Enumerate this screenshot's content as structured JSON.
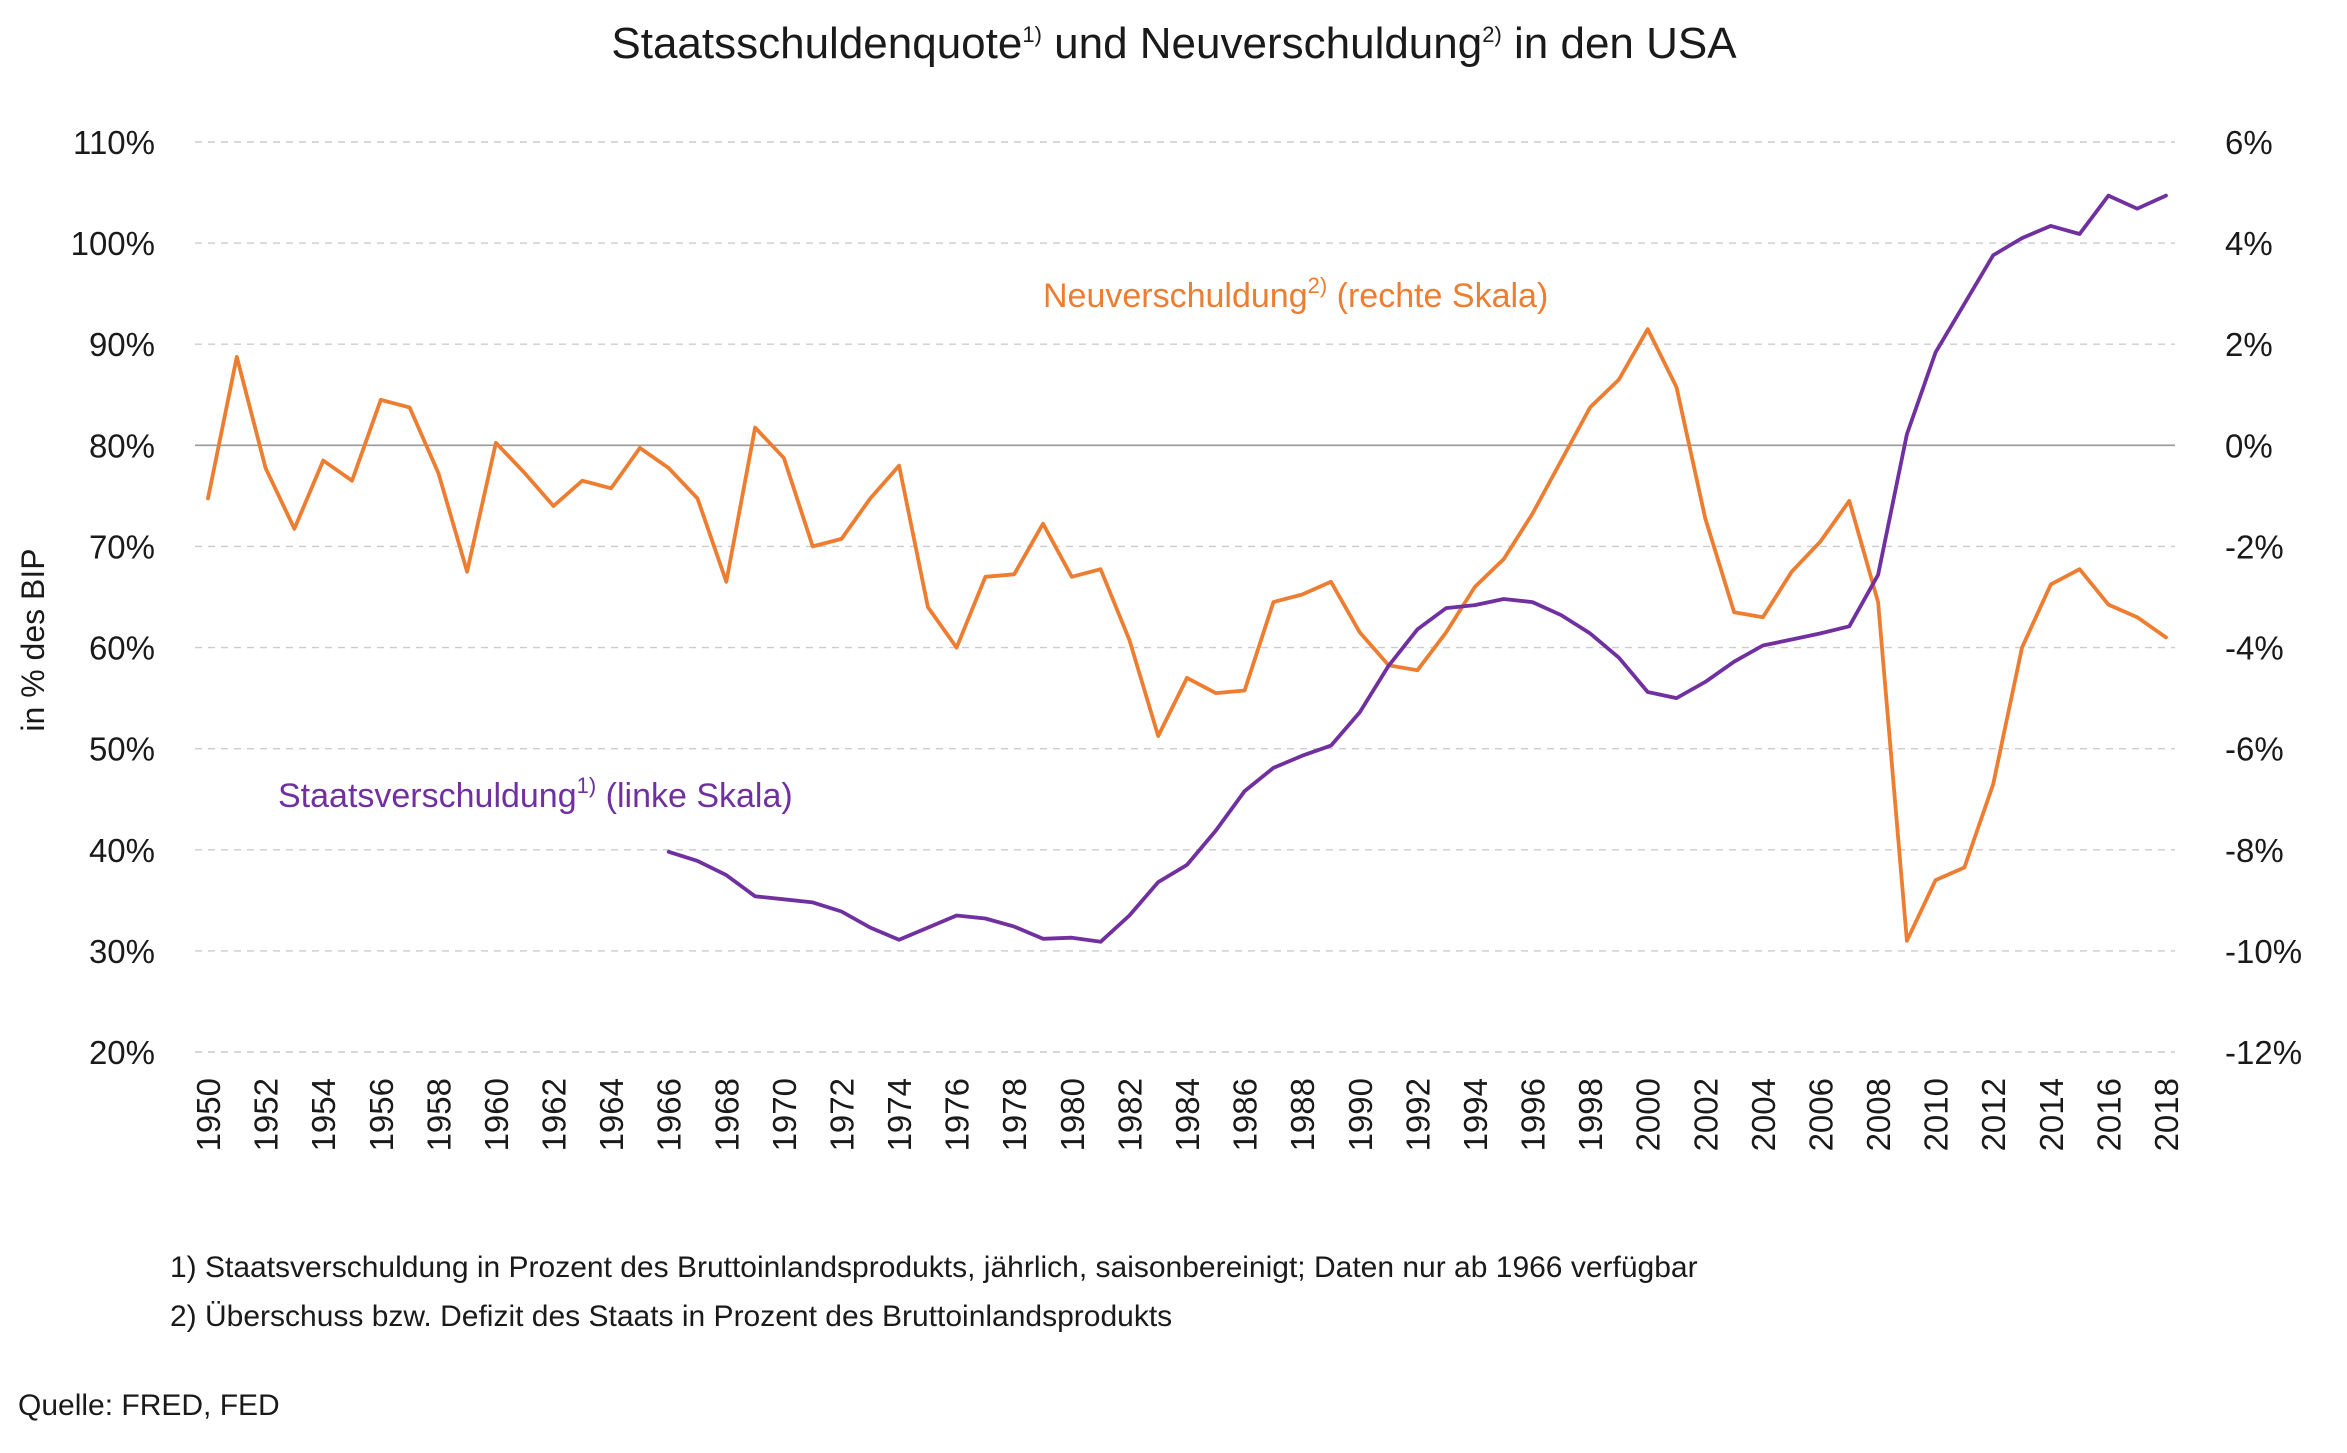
{
  "title": {
    "part1": "Staatsschuldenquote",
    "sup1": "1)",
    "part2": " und Neuverschuldung",
    "sup2": "2)",
    "part3": " in den USA"
  },
  "y_left_label": "in % des BIP",
  "labels": {
    "neu_text": "Neuverschuldung",
    "neu_sup": "2)",
    "neu_scale": " (rechte Skala)",
    "staat_text": "Staatsverschuldung",
    "staat_sup": "1)",
    "staat_scale": " (linke Skala)"
  },
  "footnotes": {
    "note1": "1) Staatsverschuldung in Prozent des Bruttoinlandsprodukts, jährlich, saisonbereinigt; Daten nur ab 1966 verfügbar",
    "note2": "2) Überschuss bzw. Defizit des Staats in Prozent des Bruttoinlandsprodukts",
    "source": "Quelle: FRED, FED"
  },
  "colors": {
    "neuverschuldung": "#ED7D31",
    "staatsverschuldung": "#7030A0",
    "grid": "#cccccc",
    "zero_line": "#999999"
  },
  "chart_data": {
    "type": "line",
    "title": "Staatsschuldenquote1) und Neuverschuldung2) in den USA",
    "xlabel": "",
    "ylabel": "in % des BIP",
    "x": [
      1950,
      1951,
      1952,
      1953,
      1954,
      1955,
      1956,
      1957,
      1958,
      1959,
      1960,
      1961,
      1962,
      1963,
      1964,
      1965,
      1966,
      1967,
      1968,
      1969,
      1970,
      1971,
      1972,
      1973,
      1974,
      1975,
      1976,
      1977,
      1978,
      1979,
      1980,
      1981,
      1982,
      1983,
      1984,
      1985,
      1986,
      1987,
      1988,
      1989,
      1990,
      1991,
      1992,
      1993,
      1994,
      1995,
      1996,
      1997,
      1998,
      1999,
      2000,
      2001,
      2002,
      2003,
      2004,
      2005,
      2006,
      2007,
      2008,
      2009,
      2010,
      2011,
      2012,
      2013,
      2014,
      2015,
      2016,
      2017,
      2018
    ],
    "x_ticks": [
      "1950",
      "1952",
      "1954",
      "1956",
      "1958",
      "1960",
      "1962",
      "1964",
      "1966",
      "1968",
      "1970",
      "1972",
      "1974",
      "1976",
      "1978",
      "1980",
      "1982",
      "1984",
      "1986",
      "1988",
      "1990",
      "1992",
      "1994",
      "1996",
      "1998",
      "2000",
      "2002",
      "2004",
      "2006",
      "2008",
      "2010",
      "2012",
      "2014",
      "2016",
      "2018"
    ],
    "y_left": {
      "lim": [
        20,
        110
      ],
      "ticks": [
        "20%",
        "30%",
        "40%",
        "50%",
        "60%",
        "70%",
        "80%",
        "90%",
        "100%",
        "110%"
      ]
    },
    "y_right": {
      "lim": [
        -12,
        6
      ],
      "ticks": [
        "-12%",
        "-10%",
        "-8%",
        "-6%",
        "-4%",
        "-2%",
        "0%",
        "2%",
        "4%",
        "6%"
      ]
    },
    "grid": true,
    "series": [
      {
        "name": "Neuverschuldung2) (rechte Skala)",
        "axis": "right",
        "values": [
          -1.05,
          1.75,
          -0.45,
          -1.65,
          -0.3,
          -0.7,
          0.9,
          0.75,
          -0.55,
          -2.5,
          0.05,
          -0.55,
          -1.2,
          -0.7,
          -0.85,
          -0.05,
          -0.45,
          -1.05,
          -2.7,
          0.35,
          -0.25,
          -2.0,
          -1.85,
          -1.05,
          -0.4,
          -3.2,
          -4.0,
          -2.6,
          -2.55,
          -1.55,
          -2.6,
          -2.45,
          -3.85,
          -5.75,
          -4.6,
          -4.9,
          -4.85,
          -3.1,
          -2.95,
          -2.7,
          -3.7,
          -4.35,
          -4.45,
          -3.7,
          -2.8,
          -2.25,
          -1.35,
          -0.3,
          0.75,
          1.3,
          2.3,
          1.15,
          -1.45,
          -3.3,
          -3.4,
          -2.5,
          -1.9,
          -1.1,
          -3.1,
          -9.8,
          -8.6,
          -8.35,
          -6.7,
          -4.0,
          -2.75,
          -2.45,
          -3.15,
          -3.4,
          -3.8
        ]
      },
      {
        "name": "Staatsverschuldung1) (linke Skala)",
        "axis": "left",
        "values": [
          null,
          null,
          null,
          null,
          null,
          null,
          null,
          null,
          null,
          null,
          null,
          null,
          null,
          null,
          null,
          null,
          39.8,
          38.9,
          37.5,
          35.4,
          35.1,
          34.8,
          33.9,
          32.3,
          31.1,
          32.3,
          33.5,
          33.2,
          32.4,
          31.2,
          31.3,
          30.9,
          33.5,
          36.8,
          38.5,
          41.9,
          45.8,
          48.1,
          49.3,
          50.3,
          53.6,
          58.2,
          61.8,
          63.9,
          64.2,
          64.8,
          64.5,
          63.2,
          61.4,
          59.0,
          55.6,
          55.0,
          56.6,
          58.6,
          60.2,
          60.8,
          61.4,
          62.1,
          67.2,
          81.1,
          89.2,
          94.0,
          98.8,
          100.5,
          101.7,
          100.9,
          104.7,
          103.4,
          104.7
        ]
      }
    ]
  }
}
